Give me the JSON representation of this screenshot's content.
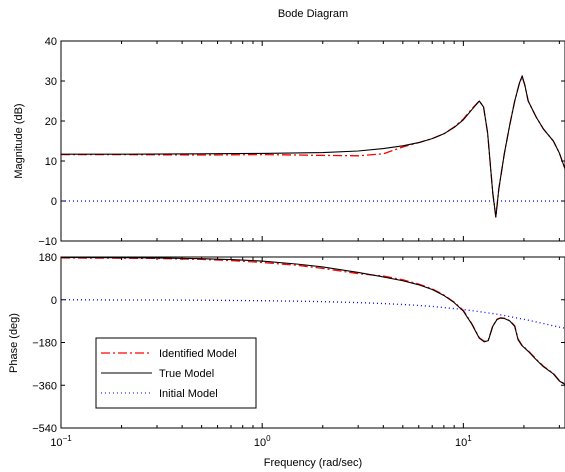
{
  "chart_data": {
    "type": "line",
    "title": "Bode Diagram",
    "xlabel": "Frequency  (rad/sec)",
    "x_scale": "log",
    "xlim": [
      0.1,
      32
    ],
    "x_ticks": [
      {
        "value": 0.1,
        "base": "10",
        "exp": "−1"
      },
      {
        "value": 1,
        "base": "10",
        "exp": "0"
      },
      {
        "value": 10,
        "base": "10",
        "exp": "1"
      }
    ],
    "legend": {
      "placement": "lower-left of phase plot",
      "entries": [
        "Identified Model",
        "True Model",
        "Initial Model"
      ]
    },
    "series_styles": [
      {
        "name": "Identified Model",
        "color": "#ff0000",
        "dash": "dash-dot"
      },
      {
        "name": "True Model",
        "color": "#000000",
        "dash": "solid"
      },
      {
        "name": "Initial Model",
        "color": "#0000ff",
        "dash": "dotted"
      }
    ],
    "panels": [
      {
        "id": "magnitude",
        "ylabel": "Magnitude (dB)",
        "ylim": [
          -10,
          40
        ],
        "y_ticks": [
          -10,
          0,
          10,
          20,
          30,
          40
        ],
        "series": [
          {
            "name": "Identified Model",
            "x": [
              0.1,
              0.2,
              0.5,
              1,
              1.5,
              2,
              3,
              4,
              5,
              6,
              7,
              8,
              9,
              10,
              11,
              12,
              12.6,
              13.2,
              14,
              14.5,
              15,
              16,
              17,
              18,
              19,
              19.6,
              20.2,
              21,
              23,
              25,
              28,
              30,
              32
            ],
            "y": [
              11.6,
              11.6,
              11.5,
              11.6,
              11.5,
              11.4,
              11.3,
              11.8,
              13.5,
              14.6,
              15.6,
              16.8,
              18.5,
              20.5,
              23,
              25,
              23.5,
              17,
              2,
              -4,
              3,
              12,
              19,
              25,
              29.5,
              31,
              29,
              25,
              21,
              18,
              15,
              12,
              8
            ]
          },
          {
            "name": "True Model",
            "x": [
              0.1,
              0.2,
              0.5,
              1,
              2,
              3,
              4,
              5,
              6,
              7,
              8,
              9,
              10,
              11,
              12,
              12.6,
              13.2,
              14,
              14.5,
              15,
              16,
              17,
              18,
              19,
              19.6,
              20.2,
              21,
              23,
              25,
              28,
              30,
              32
            ],
            "y": [
              11.7,
              11.7,
              11.8,
              11.9,
              12.1,
              12.5,
              13.1,
              13.8,
              14.6,
              15.6,
              16.8,
              18.4,
              20.3,
              22.8,
              25,
              23.5,
              17,
              2,
              -4,
              3,
              12,
              19,
              25,
              29.5,
              31.3,
              29,
              25,
              21,
              18,
              15,
              12,
              8
            ]
          },
          {
            "name": "Initial Model",
            "x": [
              0.1,
              1,
              10,
              32
            ],
            "y": [
              0,
              0,
              0,
              0
            ]
          }
        ]
      },
      {
        "id": "phase",
        "ylabel": "Phase (deg)",
        "ylim": [
          -540,
          180
        ],
        "y_ticks": [
          -540,
          -360,
          -180,
          0,
          180
        ],
        "series": [
          {
            "name": "Identified Model",
            "x": [
              0.1,
              0.2,
              0.3,
              0.5,
              0.7,
              1,
              1.5,
              2,
              3,
              4,
              5,
              6,
              7,
              8,
              9,
              10,
              11,
              12,
              12.7,
              13.3,
              14,
              14.7,
              15.3,
              16,
              17,
              18,
              18.7,
              19.5,
              21,
              23,
              25,
              28,
              30,
              32
            ],
            "y": [
              176,
              175,
              174,
              170,
              165,
              157,
              145,
              132,
              110,
              100,
              84,
              66,
              46,
              20,
              -10,
              -45,
              -100,
              -160,
              -175,
              -170,
              -110,
              -82,
              -76,
              -78,
              -88,
              -110,
              -165,
              -190,
              -215,
              -250,
              -280,
              -310,
              -340,
              -355
            ]
          },
          {
            "name": "True Model",
            "x": [
              0.1,
              0.2,
              0.3,
              0.5,
              0.7,
              1,
              1.5,
              2,
              3,
              4,
              5,
              6,
              7,
              8,
              9,
              10,
              11,
              12,
              12.7,
              13.3,
              14,
              14.7,
              15.3,
              16,
              17,
              18,
              18.7,
              19.5,
              21,
              23,
              25,
              28,
              30,
              32
            ],
            "y": [
              178,
              177,
              176,
              173,
              169,
              163,
              150,
              138,
              115,
              96,
              80,
              63,
              43,
              18,
              -12,
              -48,
              -102,
              -162,
              -177,
              -172,
              -112,
              -83,
              -77,
              -79,
              -89,
              -112,
              -168,
              -192,
              -217,
              -252,
              -282,
              -312,
              -342,
              -357
            ]
          },
          {
            "name": "Initial Model",
            "x": [
              0.1,
              0.2,
              0.3,
              0.5,
              0.7,
              1,
              1.5,
              2,
              3,
              4,
              5,
              6,
              7,
              8,
              10,
              12,
              15,
              18,
              21,
              25,
              28,
              32
            ],
            "y": [
              0,
              -1,
              -1,
              -2,
              -3,
              -4,
              -6,
              -8,
              -12,
              -16,
              -20,
              -24,
              -28,
              -33,
              -41,
              -50,
              -62,
              -75,
              -86,
              -100,
              -110,
              -120
            ]
          }
        ]
      }
    ]
  }
}
